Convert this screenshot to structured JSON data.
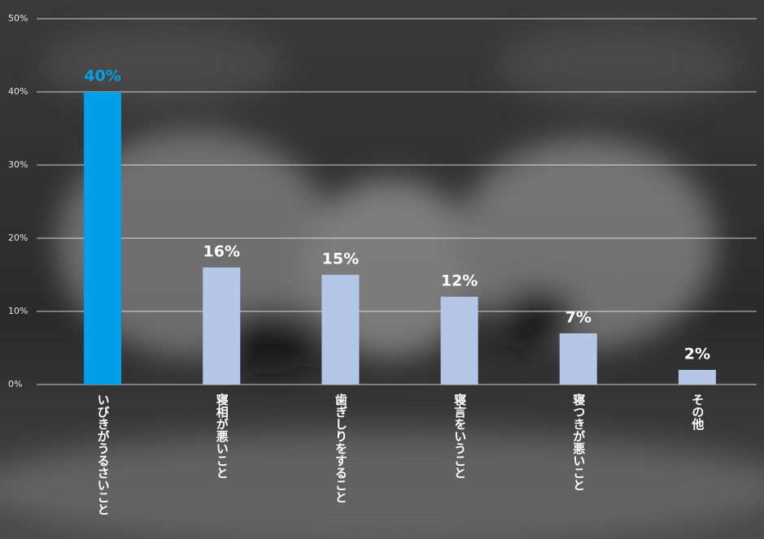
{
  "chart_data": {
    "type": "bar",
    "categories": [
      "いびきがうるさいこと",
      "寝相が悪いこと",
      "歯ぎしりをすること",
      "寝言をいうこと",
      "寝つきが悪いこと",
      "その他"
    ],
    "values": [
      40,
      16,
      15,
      12,
      7,
      2
    ],
    "value_labels": [
      "40%",
      "16%",
      "15%",
      "12%",
      "7%",
      "2%"
    ],
    "colors": [
      "#00a0e9",
      "#b4c7e7",
      "#b4c7e7",
      "#b4c7e7",
      "#b4c7e7",
      "#b4c7e7"
    ],
    "value_label_colors": [
      "#00a0e9",
      "#ffffff",
      "#ffffff",
      "#ffffff",
      "#ffffff",
      "#ffffff"
    ],
    "ylim": [
      0,
      50
    ],
    "yticks": [
      {
        "value": 0,
        "label": "0%"
      },
      {
        "value": 10,
        "label": "10%"
      },
      {
        "value": 20,
        "label": "20%"
      },
      {
        "value": 30,
        "label": "30%"
      },
      {
        "value": 40,
        "label": "40%"
      },
      {
        "value": 50,
        "label": "50%"
      }
    ],
    "grid": true
  }
}
